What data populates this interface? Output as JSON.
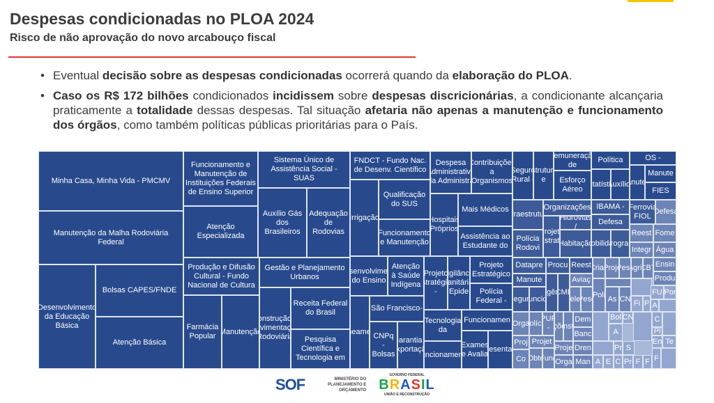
{
  "header": {
    "title": "Despesas condicionadas no PLOA 2024",
    "subtitle": "Risco de não aprovação do novo arcabouço fiscal"
  },
  "bullets": [
    [
      {
        "t": "Eventual ",
        "b": false
      },
      {
        "t": "decisão sobre as despesas condicionadas",
        "b": true
      },
      {
        "t": " ocorrerá quando da ",
        "b": false
      },
      {
        "t": "elaboração do PLOA",
        "b": true
      },
      {
        "t": ".",
        "b": false
      }
    ],
    [
      {
        "t": "Caso os R$ 172 bilhões",
        "b": true
      },
      {
        "t": " condicionados ",
        "b": false
      },
      {
        "t": "incidissem",
        "b": true
      },
      {
        "t": " sobre ",
        "b": false
      },
      {
        "t": "despesas discricionárias",
        "b": true
      },
      {
        "t": ", a condicionante alcançaria praticamente a ",
        "b": false
      },
      {
        "t": "totalidade",
        "b": true
      },
      {
        "t": " dessas despesas. Tal situação ",
        "b": false
      },
      {
        "t": "afetaria não apenas a manutenção e funcionamento dos órgãos",
        "b": true
      },
      {
        "t": ", como também políticas públicas prioritárias para o País.",
        "b": false
      }
    ]
  ],
  "treemap": {
    "cells": [
      "Minha Casa, Minha Vida - PMCMV",
      "Manutenção da Malha Rodoviária Federal",
      "Desenvolvimento da Educação Básica",
      "Bolsas CAPES/FNDE",
      "Atenção Básica",
      "Funcionamento e Manutenção de Instituições Federais de Ensino Superior",
      "Atenção Especializada",
      "Produção e Difusão Cultural - Fundo Nacional de Cultura",
      "Farmácia Popular",
      "Manutenção",
      "Sistema Único de Assistência Social - SUAS",
      "Auxílio Gás dos Brasileiros",
      "Adequação de Rodovias",
      "Gestão e Planejamento Urbanos",
      "Construção e Pavimentação Rodoviária",
      "Receita Federal do Brasil",
      "Pesquisa Científica e Tecnologia em",
      "FNDCT - Fundo Nac. de Desenv. Científico",
      "Irrigação",
      "Qualificação do SUS",
      "Funcionamento e Manutenção",
      "Desenvolvimento do Ensino",
      "Atenção à Saúde Indígena",
      "Saneamento",
      "São Francisco-",
      "CNPq - Bolsas",
      "Garantia à Exportação",
      "Despesa Administrativa da Administra",
      "Contribuições a Organismos",
      "Hospitais Próprios",
      "Mais Médicos",
      "Assistência ao Estudante do",
      "Projeto Estratégico -",
      "Vigilância Sanitária, Epide",
      "Projeto Estratégico",
      "Polícia Federal -",
      "Tecnologia da",
      "Funcionamento",
      "Funcionamen",
      "Exames e Avalia",
      "Representações",
      "Seguro Rural -",
      "Reestruturação e",
      "Remuneração de",
      "Esforço Aéreo",
      "Política",
      "Estatística",
      "Auxílio-",
      "OS -",
      "Manutenç",
      "Manute",
      "FIES",
      "Infraestrutura",
      "Polícia Rodovi",
      "Organizações",
      "Projeto Estraté",
      "Hidrovias /",
      "Habitação",
      "IBAMA -",
      "Defesa",
      "Mobilidad",
      "Program",
      "Ferrovia FIOL",
      "Defesa",
      "Reest",
      "Fome",
      "Integr",
      "Água",
      "Datapre",
      "Procu",
      "Reest",
      "Manute",
      "Segura",
      "Funcion",
      "Urgênci",
      "ICMBi",
      "Aviaç",
      "Telec",
      "Pesq",
      "Crian",
      "Proje",
      "Pesc",
      "Agric",
      "CBT",
      "Ensin",
      "Produ",
      "Poli",
      "",
      "As",
      "CN",
      "",
      "Fi",
      "P",
      "FU",
      "Por",
      "A",
      "",
      "Orga",
      "Polícia",
      "PUP -",
      "Ações",
      "Insti",
      "Dem",
      "Banc",
      "Proj",
      "Co",
      "Projet",
      "Obte",
      "Fund",
      "Proje",
      "Orga",
      "Dren",
      "Man",
      "",
      "Bol",
      "CN",
      "",
      "A",
      "",
      "Pr",
      "S",
      "A",
      "E",
      "C",
      "Pr",
      "F",
      "F",
      "C",
      "Pl",
      "En",
      "Te",
      "F",
      "",
      ""
    ]
  },
  "footer": {
    "sof": "SOF",
    "ministry": "MINISTÉRIO DO PLANEJAMENTO E ORÇAMENTO",
    "gov_label": "GOVERNO FEDERAL",
    "brasil": "BRASIL",
    "gov_slogan": "UNIÃO E RECONSTRUÇÃO"
  }
}
